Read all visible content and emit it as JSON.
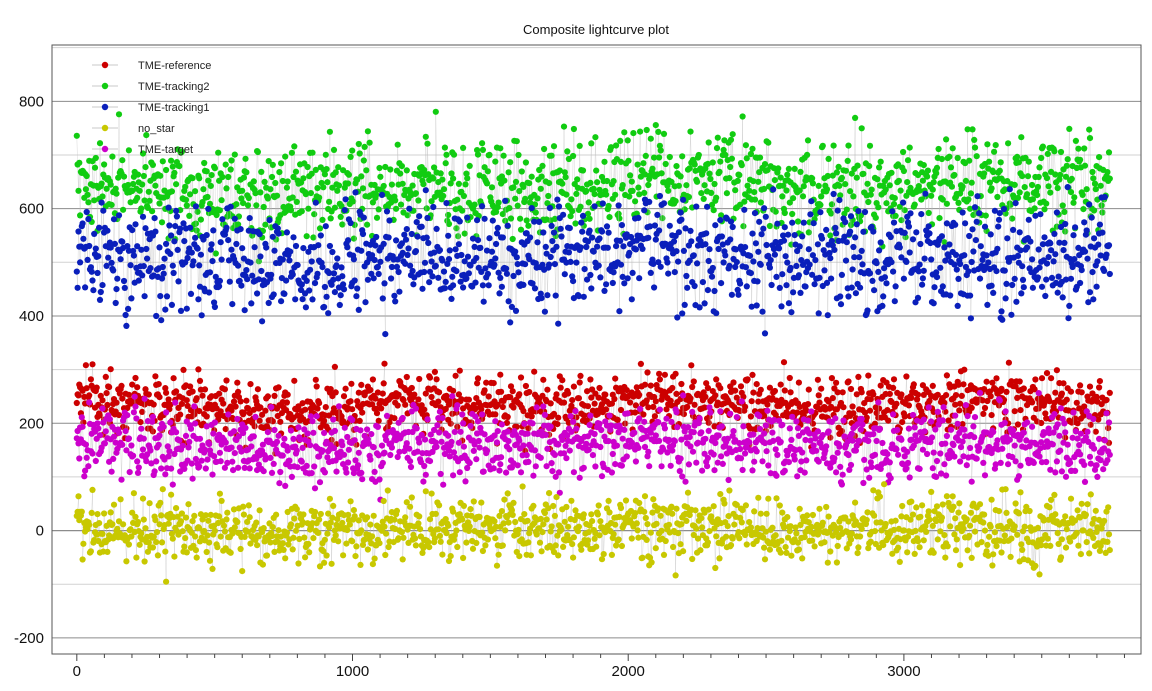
{
  "chart_data": {
    "type": "scatter",
    "title": "Composite lightcurve plot",
    "xlabel": "",
    "ylabel": "",
    "xlim": [
      -90,
      3860
    ],
    "ylim": [
      -230,
      905
    ],
    "x_ticks": [
      0,
      1000,
      2000,
      3000
    ],
    "x_tick_labels": [
      "0",
      "1000",
      "2000",
      "3000"
    ],
    "y_ticks": [
      -200,
      0,
      200,
      400,
      600,
      800
    ],
    "y_tick_labels": [
      "-200",
      "0",
      "200",
      "400",
      "600",
      "800"
    ],
    "grid": "horizontal",
    "legend_position": "top-left",
    "n_points_per_series": 3750,
    "series": [
      {
        "name": "TME-reference",
        "color": "#cc0000",
        "values": [
          250,
          235,
          220,
          240,
          230,
          245,
          236,
          228,
          242,
          232
        ]
      },
      {
        "name": "TME-tracking2",
        "color": "#11cc11",
        "values": [
          650,
          640,
          625,
          645,
          630,
          660,
          648,
          636,
          655,
          642
        ]
      },
      {
        "name": "TME-tracking1",
        "color": "#0a1fbb",
        "values": [
          520,
          505,
          495,
          510,
          500,
          525,
          512,
          498,
          518,
          508
        ]
      },
      {
        "name": "no_star",
        "color": "#c8c800",
        "values": [
          5,
          0,
          -3,
          8,
          2,
          4,
          -2,
          6,
          1,
          3
        ]
      },
      {
        "name": "TME-target",
        "color": "#cc00cc",
        "values": [
          170,
          160,
          150,
          168,
          158,
          172,
          162,
          155,
          166,
          160
        ]
      }
    ]
  }
}
